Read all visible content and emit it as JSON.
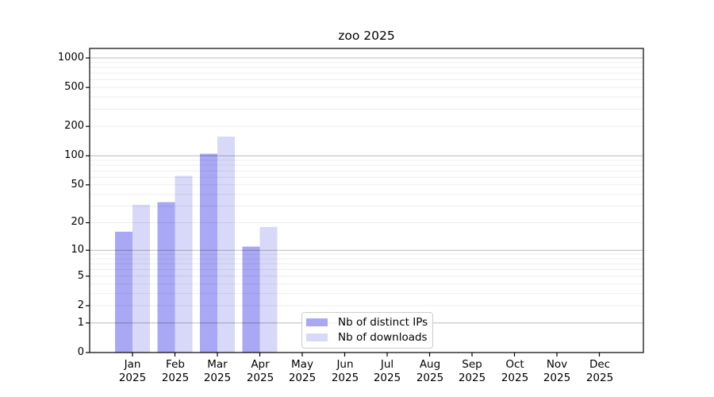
{
  "chart_data": {
    "type": "bar",
    "title": "zoo 2025",
    "categories": [
      "Jan 2025",
      "Feb 2025",
      "Mar 2025",
      "Apr 2025",
      "May 2025",
      "Jun 2025",
      "Jul 2025",
      "Aug 2025",
      "Sep 2025",
      "Oct 2025",
      "Nov 2025",
      "Dec 2025"
    ],
    "series": [
      {
        "name": "Nb of distinct IPs",
        "color": "#a8a8f4",
        "values": [
          16,
          33,
          105,
          11,
          0,
          0,
          0,
          0,
          0,
          0,
          0,
          0
        ]
      },
      {
        "name": "Nb of downloads",
        "color": "#d8d8f8",
        "values": [
          31,
          62,
          157,
          18,
          0,
          0,
          0,
          0,
          0,
          0,
          0,
          0
        ]
      }
    ],
    "xlabel": "",
    "ylabel": "",
    "yscale": "log1p",
    "yticks": [
      0,
      1,
      2,
      5,
      10,
      20,
      50,
      100,
      200,
      500,
      1000
    ],
    "ylim": [
      0,
      1250
    ],
    "grid": true,
    "legend_position": "lower center"
  }
}
